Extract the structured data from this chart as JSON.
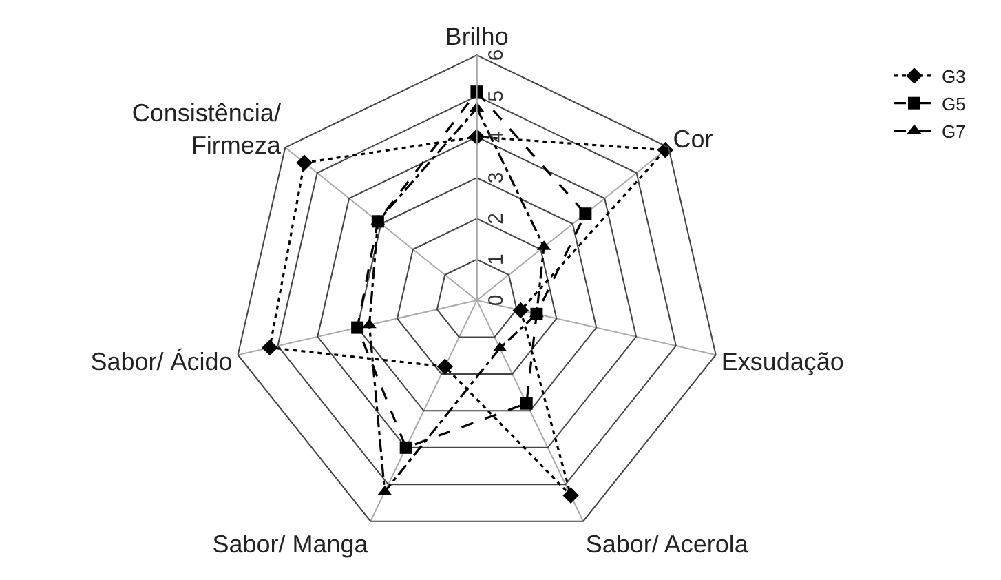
{
  "chart_data": {
    "type": "radar",
    "categories": [
      "Brilho",
      "Cor",
      "Exsudação",
      "Sabor/ Acerola",
      "Sabor/ Manga",
      "Sabor/ Ácido",
      "Consistência/\nFirmeza"
    ],
    "series": [
      {
        "name": "G3",
        "color": "#000000",
        "marker": "diamond",
        "line_style": "dotted",
        "values": [
          4.0,
          5.9,
          1.1,
          5.3,
          1.8,
          5.2,
          5.4
        ]
      },
      {
        "name": "G5",
        "color": "#000000",
        "marker": "square",
        "line_style": "dashed",
        "values": [
          5.1,
          3.4,
          1.5,
          2.8,
          4.0,
          3.0,
          3.1
        ]
      },
      {
        "name": "G7",
        "color": "#000000",
        "marker": "triangle",
        "line_style": "dashdot",
        "values": [
          4.7,
          2.1,
          1.5,
          1.3,
          5.2,
          2.7,
          3.1
        ]
      }
    ],
    "ylim": [
      0,
      6
    ],
    "yticks": [
      0,
      1,
      2,
      3,
      4,
      5,
      6
    ],
    "grid": true,
    "legend": "top right"
  }
}
